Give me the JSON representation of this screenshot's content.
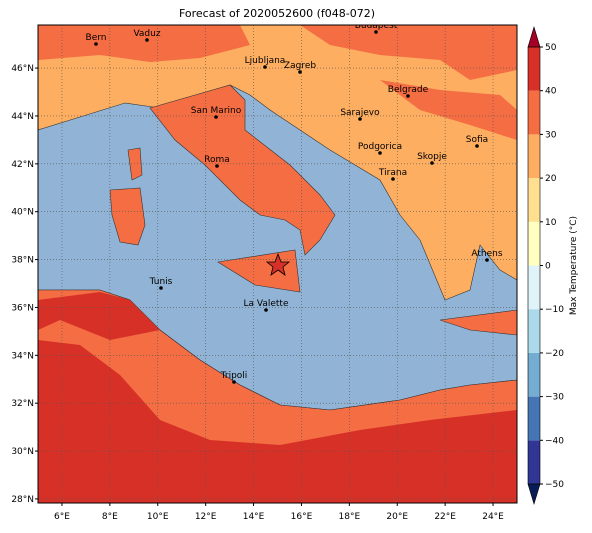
{
  "title": "Forecast of 2020052600 (f048-072)",
  "map": {
    "xlim": [
      5,
      25
    ],
    "ylim": [
      27.83,
      47.8
    ],
    "xticks": [
      {
        "value": 6,
        "label": "6°E"
      },
      {
        "value": 8,
        "label": "8°E"
      },
      {
        "value": 10,
        "label": "10°E"
      },
      {
        "value": 12,
        "label": "12°E"
      },
      {
        "value": 14,
        "label": "14°E"
      },
      {
        "value": 16,
        "label": "16°E"
      },
      {
        "value": 18,
        "label": "18°E"
      },
      {
        "value": 20,
        "label": "20°E"
      },
      {
        "value": 22,
        "label": "22°E"
      },
      {
        "value": 24,
        "label": "24°E"
      }
    ],
    "yticks": [
      {
        "value": 28,
        "label": "28°N"
      },
      {
        "value": 30,
        "label": "30°N"
      },
      {
        "value": 32,
        "label": "32°N"
      },
      {
        "value": 34,
        "label": "34°N"
      },
      {
        "value": 36,
        "label": "36°N"
      },
      {
        "value": 38,
        "label": "38°N"
      },
      {
        "value": 40,
        "label": "40°N"
      },
      {
        "value": 42,
        "label": "42°N"
      },
      {
        "value": 44,
        "label": "44°N"
      },
      {
        "value": 46,
        "label": "46°N"
      }
    ],
    "grid": true,
    "cities": [
      "Bern",
      "Vaduz",
      "Budapest",
      "Ljubljana",
      "Zagreb",
      "Belgrade",
      "San Marino",
      "Sarajevo",
      "Sofia",
      "Podgorica",
      "Skopje",
      "Roma",
      "Tirana",
      "Athens",
      "Tunis",
      "La Valette",
      "Tripoli"
    ]
  },
  "colorbar": {
    "label": "Max Temperature (°C)",
    "lim": [
      -50,
      50
    ],
    "ticks": [
      {
        "value": -50,
        "label": "−50"
      },
      {
        "value": -40,
        "label": "−40"
      },
      {
        "value": -30,
        "label": "−30"
      },
      {
        "value": -20,
        "label": "−20"
      },
      {
        "value": -10,
        "label": "−10"
      },
      0,
      10,
      20,
      30,
      40,
      50
    ],
    "colors": [
      "#313695",
      "#4575b4",
      "#74add1",
      "#abd9e9",
      "#e0f3f8",
      "#ffffbf",
      "#fee090",
      "#fdae61",
      "#f46d43",
      "#d73027"
    ],
    "under": "#081d58",
    "over": "#a50026"
  }
}
